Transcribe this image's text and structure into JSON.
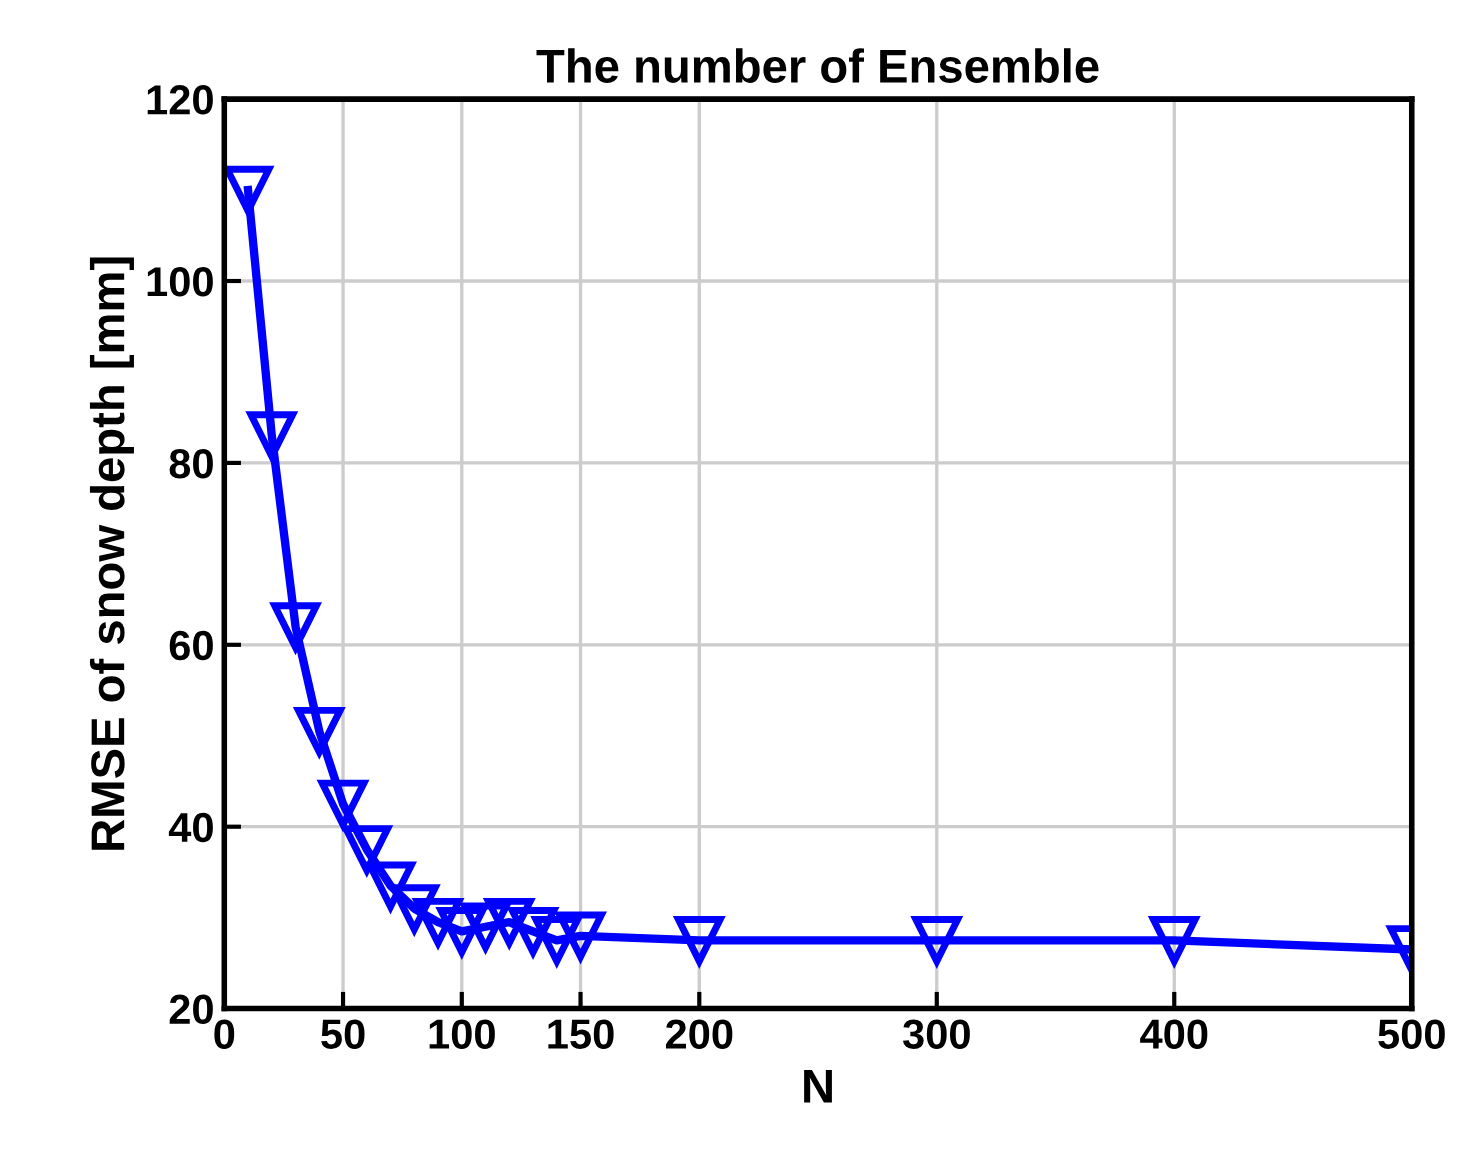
{
  "chart_data": {
    "type": "line",
    "title": "The number of Ensemble",
    "xlabel": "N",
    "ylabel": "RMSE of snow depth [mm]",
    "x": [
      10,
      20,
      30,
      40,
      50,
      60,
      70,
      80,
      90,
      100,
      110,
      120,
      130,
      140,
      150,
      200,
      300,
      400,
      500
    ],
    "series": [
      {
        "color": "#0000ff",
        "values": [
          110,
          83,
          62,
          50.5,
          42.5,
          37.5,
          33.5,
          31,
          29.5,
          28.5,
          29,
          29.5,
          28.5,
          27.5,
          28,
          27.5,
          27.5,
          27.5,
          26.5
        ]
      }
    ],
    "xlim": [
      0,
      500
    ],
    "xticks": [
      0,
      50,
      100,
      150,
      200,
      300,
      400,
      500
    ],
    "ylim": [
      20,
      120
    ],
    "yticks": [
      20,
      40,
      60,
      80,
      100,
      120
    ],
    "grid": true,
    "marker": "triangle",
    "line_style": "solid"
  }
}
